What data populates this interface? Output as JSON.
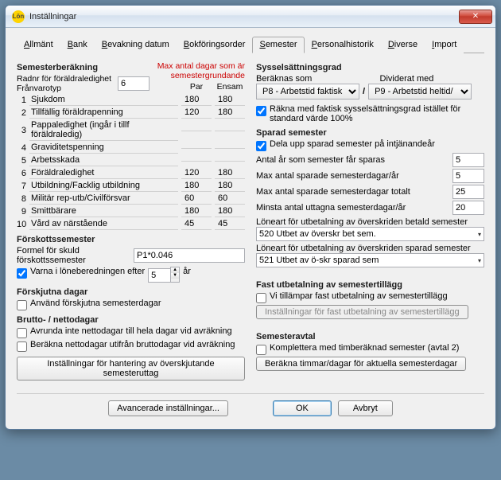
{
  "window": {
    "title": "Inställningar"
  },
  "tabs": [
    "Allmänt",
    "Bank",
    "Bevakning datum",
    "Bokföringsorder",
    "Semester",
    "Personalhistorik",
    "Diverse",
    "Import"
  ],
  "activeTab": 4,
  "left": {
    "calcTitle": "Semesterberäkning",
    "radnr": "Radnr för föräldraledighet",
    "franvaro": "Frånvarotyp",
    "franvaroValue": "6",
    "redNote1": "Max antal dagar som är",
    "redNote2": "semestergrundande",
    "colPar": "Par",
    "colEnsam": "Ensam",
    "rows": [
      {
        "n": "1",
        "label": "Sjukdom",
        "par": "180",
        "ensam": "180"
      },
      {
        "n": "2",
        "label": "Tillfällig föräldrapenning",
        "par": "120",
        "ensam": "180"
      },
      {
        "n": "3",
        "label": "Pappaledighet (ingår i tillf föräldraledig)",
        "par": "",
        "ensam": ""
      },
      {
        "n": "4",
        "label": "Graviditetspenning",
        "par": "",
        "ensam": ""
      },
      {
        "n": "5",
        "label": "Arbetsskada",
        "par": "",
        "ensam": ""
      },
      {
        "n": "6",
        "label": "Föräldraledighet",
        "par": "120",
        "ensam": "180"
      },
      {
        "n": "7",
        "label": "Utbildning/Facklig utbildning",
        "par": "180",
        "ensam": "180"
      },
      {
        "n": "8",
        "label": "Militär rep-utb/Civilförsvar",
        "par": "60",
        "ensam": "60"
      },
      {
        "n": "9",
        "label": "Smittbärare",
        "par": "180",
        "ensam": "180"
      },
      {
        "n": "10",
        "label": "Vård av närstående",
        "par": "45",
        "ensam": "45"
      }
    ],
    "forskottTitle": "Förskottssemester",
    "formelLabel": "Formel för skuld förskottssemester",
    "formelValue": "P1*0.046",
    "varnaLabel": "Varna i löneberedningen efter",
    "varnaValue": "5",
    "varnaUnit": "år",
    "forskjTitle": "Förskjutna dagar",
    "forskjChk": "Använd förskjutna semesterdagar",
    "bruttoTitle": "Brutto- / nettodagar",
    "bruttoChk1": "Avrunda inte nettodagar till hela dagar vid avräkning",
    "bruttoChk2": "Beräkna nettodagar utifrån bruttodagar vid avräkning",
    "bruttoBtn": "Inställningar för hantering av överskjutande semesteruttag"
  },
  "right": {
    "sysTitle": "Sysselsättningsgrad",
    "beraknas": "Beräknas som",
    "dividerat": "Dividerat med",
    "combo1": "P8 - Arbetstid faktisk",
    "combo2": "P9 - Arbetstid heltid/",
    "slash": "/",
    "raknaChk": "Räkna med faktisk sysselsättningsgrad istället för standard värde 100%",
    "sparadTitle": "Sparad semester",
    "delaChk": "Dela upp sparad semester på intjänandeår",
    "line1": "Antal år som semester får sparas",
    "val1": "5",
    "line2": "Max antal sparade semesterdagar/år",
    "val2": "5",
    "line3": "Max antal sparade semesterdagar totalt",
    "val3": "25",
    "line4": "Minsta antal uttagna semesterdagar/år",
    "val4": "20",
    "lon1Label": "Löneart för utbetalning av överskriden betald semester",
    "lon1Value": "520 Utbet av överskr bet sem.",
    "lon2Label": "Löneart för utbetalning av överskriden sparad semester",
    "lon2Value": "521 Utbet av ö-skr sparad sem",
    "fastTitle": "Fast utbetalning av semestertillägg",
    "fastChk": "Vi tillämpar fast utbetalning av semestertillägg",
    "fastBtn": "Inställningar för fast utbetalning av semestertillägg",
    "avtalTitle": "Semesteravtal",
    "avtalChk": "Komplettera med timberäknad semester (avtal 2)",
    "avtalBtn": "Beräkna timmar/dagar för aktuella semesterdagar"
  },
  "footer": {
    "adv": "Avancerade inställningar...",
    "ok": "OK",
    "cancel": "Avbryt"
  }
}
